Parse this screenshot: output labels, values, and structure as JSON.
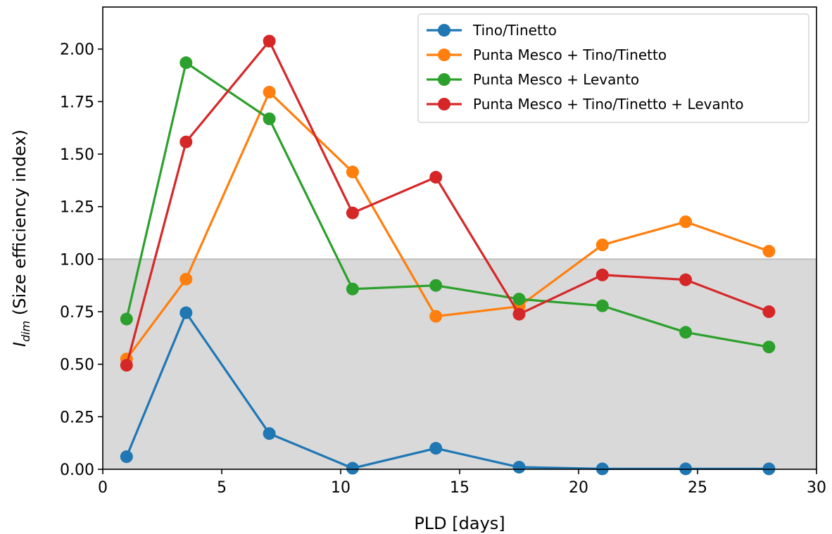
{
  "chart_data": {
    "type": "line",
    "xlabel": "PLD [days]",
    "ylabel": {
      "main": "I",
      "subscript": "dim",
      "suffix": " (Size efficiency index)"
    },
    "xlim": [
      0,
      30
    ],
    "ylim": [
      0,
      2.2
    ],
    "xticks": [
      0,
      5,
      10,
      15,
      20,
      25,
      30
    ],
    "yticks": [
      0.0,
      0.25,
      0.5,
      0.75,
      1.0,
      1.25,
      1.5,
      1.75,
      2.0
    ],
    "xtick_labels": [
      "0",
      "5",
      "10",
      "15",
      "20",
      "25",
      "30"
    ],
    "ytick_labels": [
      "0.00",
      "0.25",
      "0.50",
      "0.75",
      "1.00",
      "1.25",
      "1.50",
      "1.75",
      "2.00"
    ],
    "shaded_band": {
      "y0": 0,
      "y1": 1.0,
      "color": "#d9d9d9"
    },
    "grid": false,
    "legend_position": "top-right",
    "x": [
      1,
      3.5,
      7,
      10.5,
      14,
      17.5,
      21,
      24.5,
      28
    ],
    "series": [
      {
        "name": "Tino/Tinetto",
        "color": "#1f77b4",
        "values": [
          0.06,
          0.745,
          0.17,
          0.005,
          0.1,
          0.01,
          0.002,
          0.002,
          0.002
        ]
      },
      {
        "name": "Punta Mesco + Tino/Tinetto",
        "color": "#ff7f0e",
        "values": [
          0.525,
          0.905,
          1.795,
          1.415,
          0.728,
          0.775,
          1.068,
          1.178,
          1.038
        ]
      },
      {
        "name": "Punta Mesco + Levanto",
        "color": "#2ca02c",
        "values": [
          0.715,
          1.935,
          1.668,
          0.858,
          0.875,
          0.81,
          0.778,
          0.652,
          0.582
        ]
      },
      {
        "name": "Punta Mesco + Tino/Tinetto + Levanto",
        "color": "#d62728",
        "values": [
          0.495,
          1.558,
          2.038,
          1.22,
          1.39,
          0.738,
          0.925,
          0.902,
          0.75
        ]
      }
    ]
  }
}
